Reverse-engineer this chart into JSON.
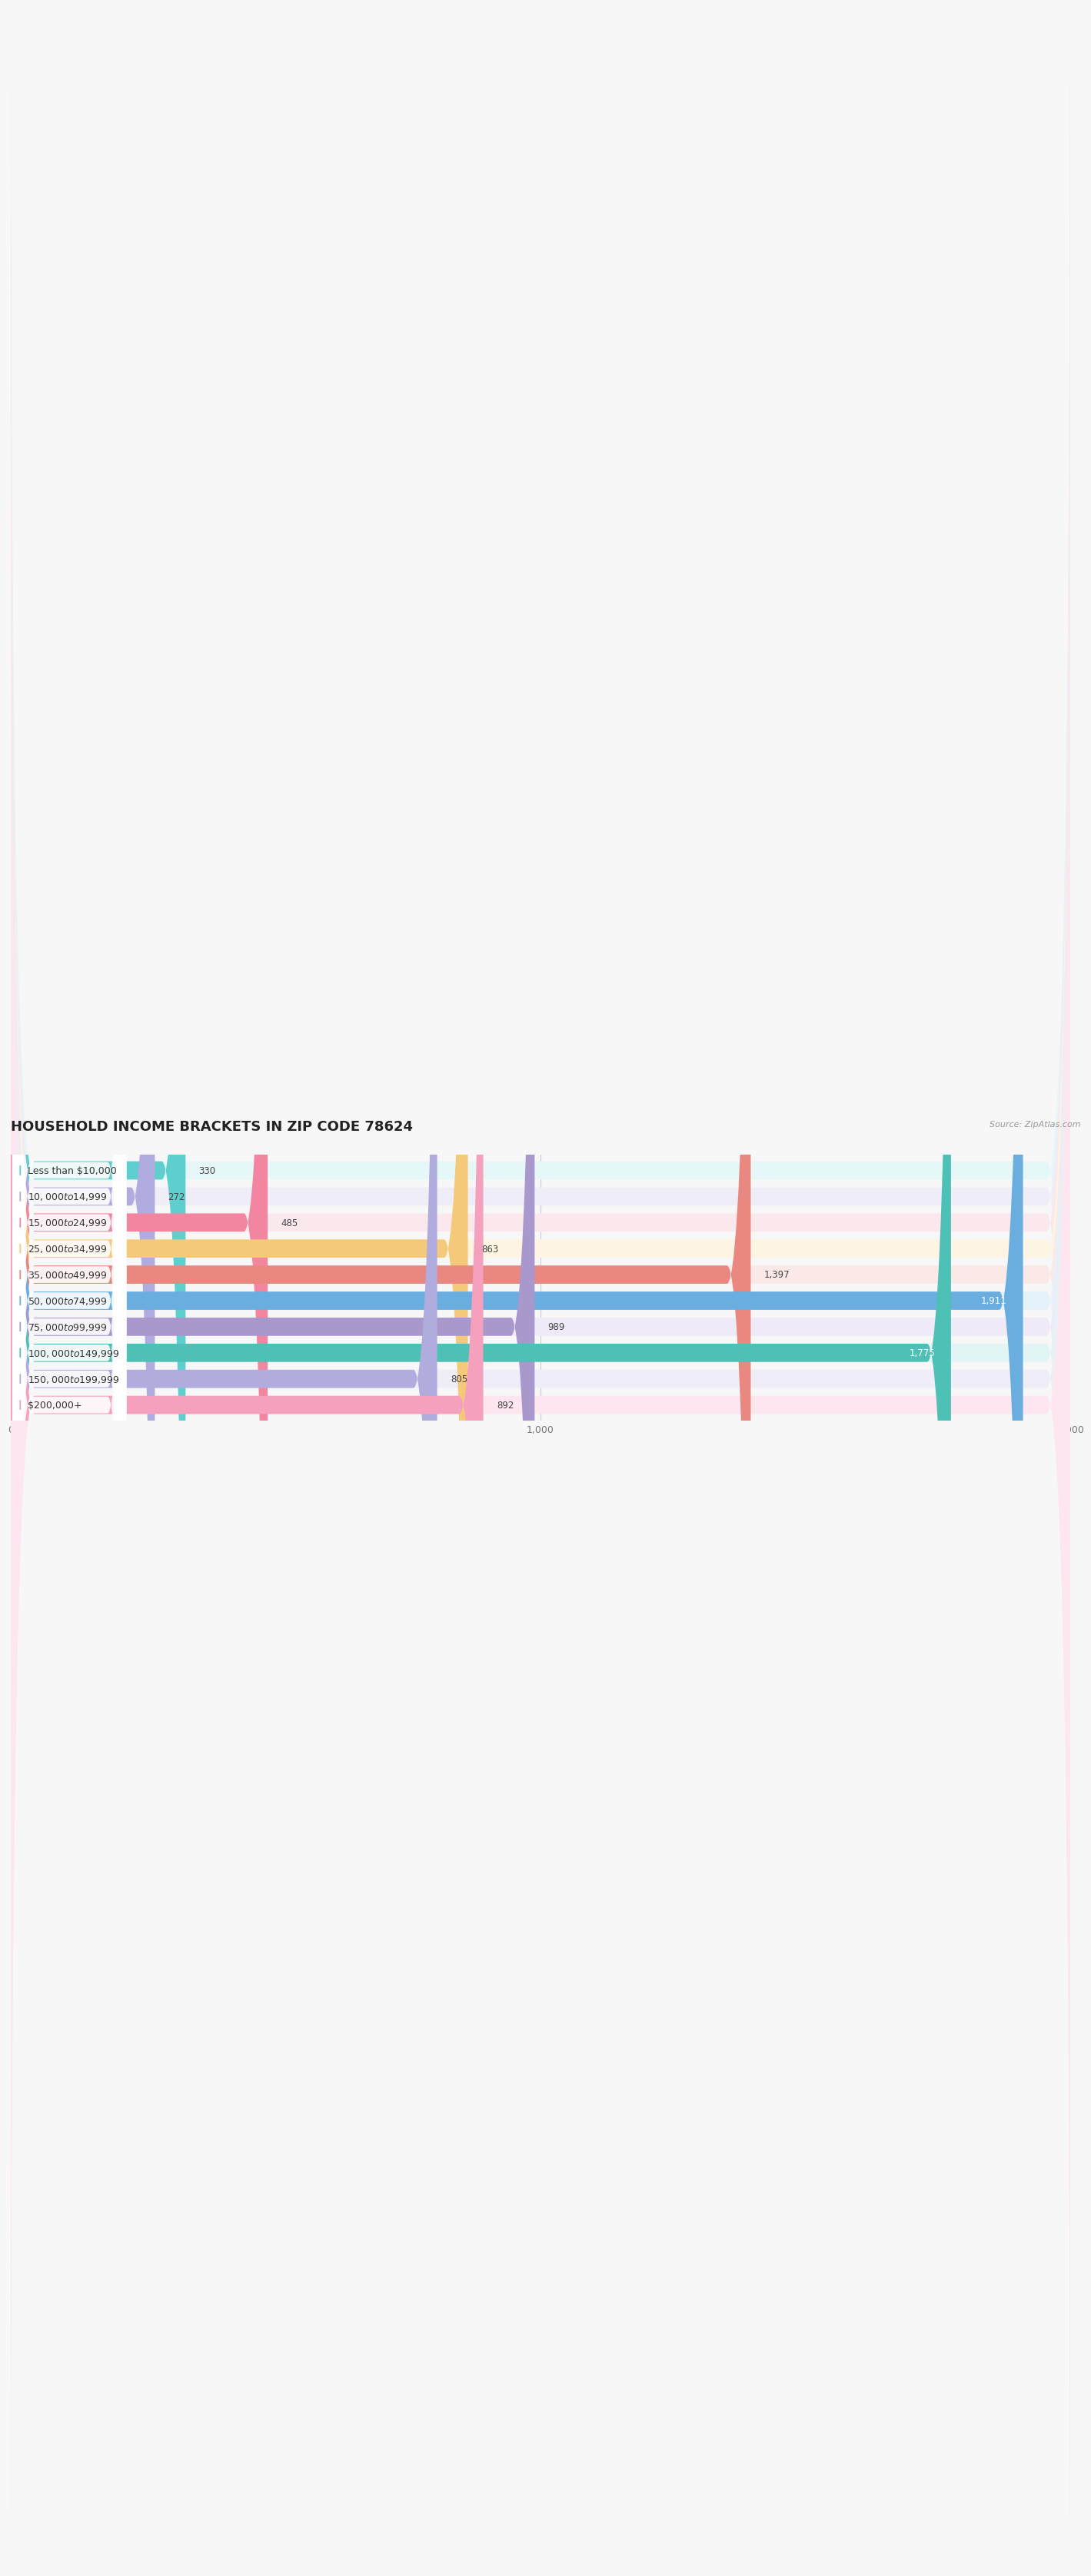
{
  "title": "HOUSEHOLD INCOME BRACKETS IN ZIP CODE 78624",
  "source": "Source: ZipAtlas.com",
  "categories": [
    "Less than $10,000",
    "$10,000 to $14,999",
    "$15,000 to $24,999",
    "$25,000 to $34,999",
    "$35,000 to $49,999",
    "$50,000 to $74,999",
    "$75,000 to $99,999",
    "$100,000 to $149,999",
    "$150,000 to $199,999",
    "$200,000+"
  ],
  "values": [
    330,
    272,
    485,
    863,
    1397,
    1911,
    989,
    1775,
    805,
    892
  ],
  "bar_colors": [
    "#5ecece",
    "#b0ace0",
    "#f285a0",
    "#f5c97a",
    "#e88880",
    "#6aaee0",
    "#a898cc",
    "#4ec0b5",
    "#b0acde",
    "#f5a0bc"
  ],
  "bar_bg_colors": [
    "#e5f7f7",
    "#eeedf8",
    "#fbe8ed",
    "#fef4e3",
    "#fbe9e7",
    "#e5f1fb",
    "#eeeaf7",
    "#e2f4f3",
    "#eeedf8",
    "#fde6ef"
  ],
  "xlim": [
    0,
    2000
  ],
  "xticks": [
    0,
    1000,
    2000
  ],
  "background_color": "#f7f7f7",
  "title_fontsize": 13,
  "label_fontsize": 9,
  "value_fontsize": 8.5
}
